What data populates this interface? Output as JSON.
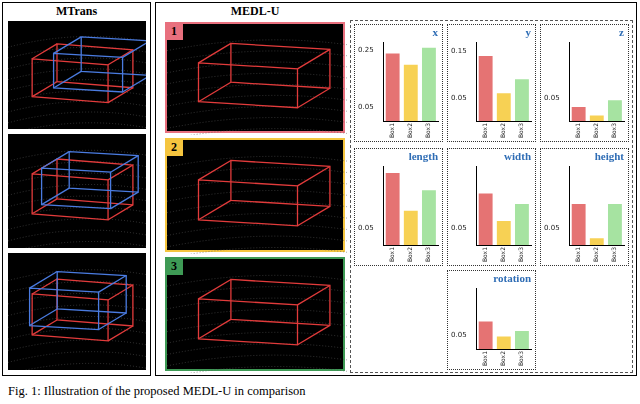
{
  "figure": {
    "left_title": "MTrans",
    "right_title": "MEDL-U",
    "badges": [
      "1",
      "2",
      "3"
    ],
    "caption": "Fig. 1: Illustration of the proposed MEDL-U in comparison"
  },
  "chart_data": [
    {
      "type": "bar",
      "title": "x",
      "categories": [
        "Box1",
        "Box2",
        "Box3"
      ],
      "values": [
        0.24,
        0.2,
        0.26
      ],
      "colors": [
        "#e57373",
        "#f7d154",
        "#a6e3a1"
      ],
      "ylim": [
        0,
        0.28
      ],
      "yticks": [
        0.05,
        0.25
      ],
      "grid": false
    },
    {
      "type": "bar",
      "title": "y",
      "categories": [
        "Box1",
        "Box2",
        "Box3"
      ],
      "values": [
        0.14,
        0.06,
        0.09
      ],
      "colors": [
        "#e57373",
        "#f7d154",
        "#a6e3a1"
      ],
      "ylim": [
        0,
        0.17
      ],
      "yticks": [
        0.05,
        0.15
      ],
      "grid": false
    },
    {
      "type": "bar",
      "title": "z",
      "categories": [
        "Box1",
        "Box2",
        "Box3"
      ],
      "values": [
        0.03,
        0.012,
        0.045
      ],
      "colors": [
        "#e57373",
        "#f7d154",
        "#a6e3a1"
      ],
      "ylim": [
        0,
        0.17
      ],
      "yticks": [
        0.05
      ],
      "grid": false
    },
    {
      "type": "bar",
      "title": "length",
      "categories": [
        "Box1",
        "Box2",
        "Box3"
      ],
      "values": [
        0.21,
        0.1,
        0.16
      ],
      "colors": [
        "#e57373",
        "#f7d154",
        "#a6e3a1"
      ],
      "ylim": [
        0,
        0.23
      ],
      "yticks": [
        0.05
      ],
      "grid": false
    },
    {
      "type": "bar",
      "title": "width",
      "categories": [
        "Box1",
        "Box2",
        "Box3"
      ],
      "values": [
        0.15,
        0.07,
        0.12
      ],
      "colors": [
        "#e57373",
        "#f7d154",
        "#a6e3a1"
      ],
      "ylim": [
        0,
        0.23
      ],
      "yticks": [
        0.05
      ],
      "grid": false
    },
    {
      "type": "bar",
      "title": "height",
      "categories": [
        "Box1",
        "Box2",
        "Box3"
      ],
      "values": [
        0.12,
        0.02,
        0.12
      ],
      "colors": [
        "#e57373",
        "#f7d154",
        "#a6e3a1"
      ],
      "ylim": [
        0,
        0.23
      ],
      "yticks": [
        0.05
      ],
      "grid": false
    },
    {
      "type": "bar",
      "title": "rotation",
      "categories": [
        "Box1",
        "Box2",
        "Box3"
      ],
      "values": [
        0.1,
        0.045,
        0.065
      ],
      "colors": [
        "#e57373",
        "#f7d154",
        "#a6e3a1"
      ],
      "ylim": [
        0,
        0.22
      ],
      "yticks": [
        0.05
      ],
      "grid": false
    }
  ]
}
